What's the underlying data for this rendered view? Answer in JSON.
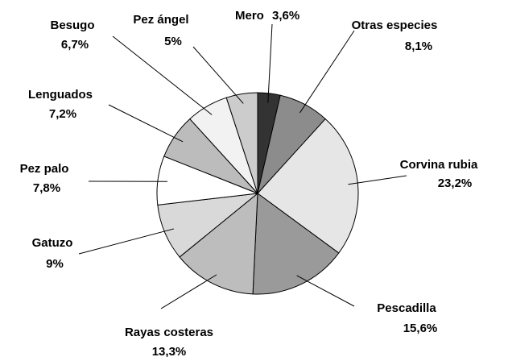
{
  "chart_data": {
    "type": "pie",
    "categories": [
      "Mero",
      "Otras especies",
      "Corvina rubia",
      "Pescadilla",
      "Rayas costeras",
      "Gatuzo",
      "Pez palo",
      "Lenguados",
      "Besugo",
      "Pez ángel"
    ],
    "values": [
      3.6,
      8.1,
      23.2,
      15.6,
      13.3,
      9,
      7.8,
      7.2,
      6.7,
      5
    ],
    "value_labels": [
      "3,6%",
      "8,1%",
      "23,2%",
      "15,6%",
      "13,3%",
      "9%",
      "7,8%",
      "7,2%",
      "6,7%",
      "5%"
    ],
    "colors": [
      "#333333",
      "#8c8c8c",
      "#e6e6e6",
      "#9a9a9a",
      "#bdbdbd",
      "#d9d9d9",
      "#ffffff",
      "#bcbcbc",
      "#f2f2f2",
      "#cccccc"
    ]
  }
}
